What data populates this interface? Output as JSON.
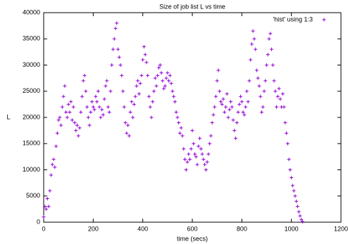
{
  "chart_data": {
    "type": "scatter",
    "title": "Size of job list L vs time",
    "x_label": "time (secs)",
    "y_label": "L",
    "legend": "top-right",
    "grid": false,
    "xlim": [
      0,
      1200
    ],
    "xticks": [
      0,
      200,
      400,
      600,
      800,
      1000,
      1200
    ],
    "ylim": [
      0,
      40000
    ],
    "yticks": [
      0,
      5000,
      10000,
      15000,
      20000,
      25000,
      30000,
      35000,
      40000
    ],
    "series": [
      {
        "name": "'hist' using 1:3",
        "color": "#9400d3",
        "x": [
          0,
          5,
          10,
          15,
          20,
          25,
          30,
          35,
          40,
          45,
          50,
          55,
          60,
          65,
          70,
          75,
          80,
          85,
          90,
          95,
          100,
          105,
          110,
          115,
          120,
          125,
          130,
          135,
          140,
          145,
          150,
          155,
          160,
          165,
          170,
          175,
          180,
          185,
          190,
          195,
          200,
          205,
          210,
          215,
          220,
          225,
          230,
          235,
          240,
          245,
          250,
          255,
          260,
          265,
          270,
          275,
          280,
          285,
          290,
          295,
          300,
          305,
          310,
          315,
          320,
          325,
          330,
          335,
          340,
          345,
          350,
          355,
          360,
          365,
          370,
          375,
          380,
          385,
          390,
          395,
          400,
          405,
          410,
          415,
          420,
          425,
          430,
          435,
          440,
          445,
          450,
          455,
          460,
          465,
          470,
          475,
          480,
          485,
          490,
          495,
          500,
          505,
          510,
          515,
          520,
          525,
          530,
          535,
          540,
          545,
          550,
          555,
          560,
          565,
          570,
          575,
          580,
          585,
          590,
          595,
          600,
          605,
          610,
          615,
          620,
          625,
          630,
          635,
          640,
          645,
          650,
          655,
          660,
          665,
          670,
          675,
          680,
          685,
          690,
          695,
          700,
          705,
          710,
          715,
          720,
          725,
          730,
          735,
          740,
          745,
          750,
          755,
          760,
          765,
          770,
          775,
          780,
          785,
          790,
          795,
          800,
          805,
          810,
          815,
          820,
          825,
          830,
          835,
          840,
          845,
          850,
          855,
          860,
          865,
          870,
          875,
          880,
          885,
          890,
          895,
          900,
          905,
          910,
          915,
          920,
          925,
          930,
          935,
          940,
          945,
          950,
          955,
          960,
          965,
          970,
          975,
          980,
          985,
          990,
          995,
          1000,
          1005,
          1010,
          1015,
          1020,
          1025,
          1030,
          1035,
          1040,
          1045
        ],
        "values": [
          1000,
          3000,
          2500,
          4500,
          3000,
          6000,
          9000,
          11000,
          12000,
          10500,
          14500,
          17000,
          19500,
          20000,
          18500,
          22000,
          24000,
          26000,
          21000,
          20000,
          22500,
          21000,
          23000,
          19500,
          22000,
          19000,
          17500,
          18500,
          16500,
          18000,
          21000,
          24000,
          27000,
          28000,
          25000,
          22000,
          20000,
          18500,
          21000,
          23000,
          22000,
          21500,
          24000,
          23000,
          25000,
          22000,
          20000,
          21500,
          20500,
          23500,
          26000,
          27000,
          22000,
          21000,
          25000,
          30000,
          33000,
          35000,
          37000,
          38000,
          33000,
          31500,
          30000,
          28000,
          25000,
          22000,
          19000,
          17000,
          18500,
          16500,
          21000,
          23000,
          20000,
          22500,
          24000,
          26000,
          27000,
          24500,
          26500,
          28000,
          31000,
          33500,
          32000,
          30500,
          28000,
          24000,
          22000,
          20000,
          23000,
          25000,
          27500,
          26000,
          28000,
          29500,
          30000,
          28500,
          27000,
          25500,
          26000,
          27500,
          28500,
          27000,
          28000,
          26500,
          25000,
          24000,
          23000,
          21000,
          20000,
          19000,
          17000,
          18000,
          16500,
          14000,
          12000,
          10000,
          11500,
          13000,
          12000,
          14000,
          17500,
          15000,
          13000,
          12500,
          11000,
          14500,
          16000,
          14000,
          13000,
          12000,
          11000,
          10000,
          11500,
          13000,
          15000,
          16500,
          19000,
          20500,
          22000,
          24000,
          27000,
          29000,
          25000,
          23000,
          22500,
          23500,
          21000,
          22000,
          24500,
          20000,
          21500,
          23000,
          22000,
          19500,
          17500,
          16000,
          19000,
          21000,
          22500,
          24000,
          23000,
          21000,
          20500,
          22000,
          25000,
          23000,
          27000,
          31000,
          34000,
          36500,
          35000,
          33000,
          29000,
          27500,
          26000,
          24000,
          21000,
          22000,
          25000,
          27000,
          30000,
          32000,
          35000,
          36000,
          33000,
          30000,
          27000,
          25000,
          22000,
          24000,
          25500,
          23500,
          22000,
          24500,
          22000,
          19000,
          17000,
          15000,
          12000,
          10000,
          8500,
          7000,
          6000,
          5000,
          4000,
          3000,
          2000,
          1200,
          500,
          100
        ]
      }
    ]
  }
}
